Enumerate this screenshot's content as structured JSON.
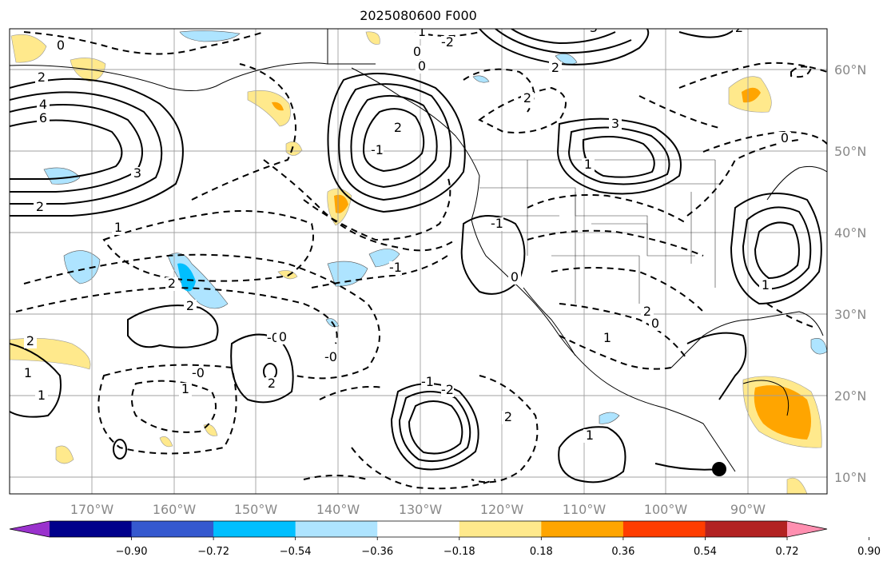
{
  "title": "2025080600 F000",
  "lon_ticks": [
    "170°W",
    "160°W",
    "150°W",
    "140°W",
    "130°W",
    "120°W",
    "110°W",
    "100°W",
    "90°W"
  ],
  "lat_ticks": [
    "60°N",
    "50°N",
    "40°N",
    "30°N",
    "20°N",
    "10°N"
  ],
  "colorbar": {
    "colors": [
      "#9a32cd",
      "#00008b",
      "#3559cf",
      "#00bfff",
      "#aee4ff",
      "#ffffff",
      "#ffe98c",
      "#ffa500",
      "#ff3d00",
      "#b22222",
      "#ff8fb0"
    ],
    "labels": [
      "−0.90",
      "−0.72",
      "−0.54",
      "−0.36",
      "−0.18",
      "0.18",
      "0.36",
      "0.54",
      "0.72",
      "0.90"
    ]
  },
  "contour_labels": [
    "0",
    "2",
    "4",
    "6",
    "2",
    "3",
    "1",
    "2",
    "2",
    "-0",
    "2",
    "1",
    "1",
    "-0",
    "0",
    "2",
    "1",
    "-0",
    "-1",
    "2",
    "0",
    "0",
    "1",
    "2",
    "-1",
    "0",
    "1",
    "3",
    "2",
    "-3",
    "-2",
    "-1",
    "1",
    "2",
    "-2",
    "-1",
    "1",
    "2",
    "0",
    "1",
    "2",
    "0"
  ],
  "marker": "station-dot"
}
